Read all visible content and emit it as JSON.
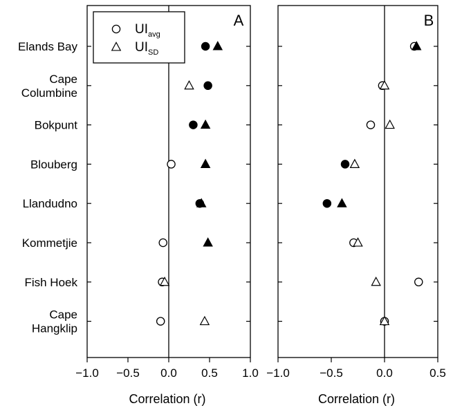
{
  "chart_data": {
    "type": "scatter",
    "sites": [
      [
        "Elands Bay"
      ],
      [
        "Cape",
        "Columbine"
      ],
      [
        "Bokpunt"
      ],
      [
        "Blouberg"
      ],
      [
        "Llandudno"
      ],
      [
        "Kommetjie"
      ],
      [
        "Fish Hoek"
      ],
      [
        "Cape",
        "Hangklip"
      ]
    ],
    "legend": [
      {
        "base": "UI",
        "sub": "avg"
      },
      {
        "base": "UI",
        "sub": "SD"
      }
    ],
    "panels": [
      {
        "label": "A",
        "xlabel": "Correlation (r)",
        "xlim": [
          -1.0,
          1.0
        ],
        "ticks": [
          -1.0,
          -0.5,
          0.0,
          0.5,
          1.0
        ],
        "tick_labels": [
          "−1.0",
          "−0.5",
          "0.0",
          "0.5",
          "1.0"
        ],
        "series": [
          {
            "name": "UIavg",
            "marker": "circle",
            "values": [
              0.45,
              0.48,
              0.3,
              0.03,
              0.38,
              -0.07,
              -0.08,
              -0.1
            ],
            "filled": [
              true,
              true,
              true,
              false,
              true,
              false,
              false,
              false
            ]
          },
          {
            "name": "UISD",
            "marker": "triangle",
            "values": [
              0.6,
              0.25,
              0.45,
              0.45,
              0.4,
              0.48,
              -0.05,
              0.44
            ],
            "filled": [
              true,
              false,
              true,
              true,
              true,
              true,
              false,
              false
            ]
          }
        ]
      },
      {
        "label": "B",
        "xlabel": "Correlation (r)",
        "xlim": [
          -1.0,
          0.5
        ],
        "ticks": [
          -1.0,
          -0.5,
          0.0,
          0.5
        ],
        "tick_labels": [
          "−1.0",
          "−0.5",
          "0.0",
          "0.5"
        ],
        "series": [
          {
            "name": "UIavg",
            "marker": "circle",
            "values": [
              0.28,
              -0.02,
              -0.13,
              -0.37,
              -0.54,
              -0.29,
              0.32,
              0.0
            ],
            "filled": [
              false,
              false,
              false,
              true,
              true,
              false,
              false,
              false
            ]
          },
          {
            "name": "UISD",
            "marker": "triangle",
            "values": [
              0.3,
              0.0,
              0.05,
              -0.28,
              -0.4,
              -0.25,
              -0.08,
              0.0
            ],
            "filled": [
              true,
              false,
              false,
              false,
              true,
              false,
              false,
              false
            ]
          }
        ]
      }
    ]
  }
}
